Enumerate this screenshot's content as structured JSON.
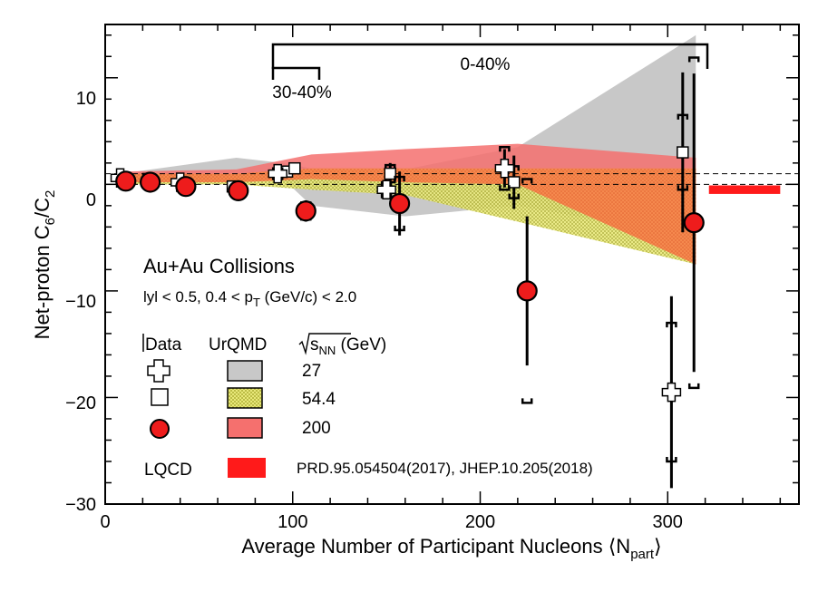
{
  "chart_data": {
    "type": "scatter",
    "xlabel": "Average Number of Participant Nucleons ⟨N",
    "xlabel_sub": "part",
    "xlabel_end": "⟩",
    "ylabel": "Net-proton C",
    "ylabel_sub1": "6",
    "ylabel_mid": "/C",
    "ylabel_sub2": "2",
    "xlim": [
      0,
      370
    ],
    "ylim": [
      -30,
      15
    ],
    "x_ticks": [
      0,
      100,
      200,
      300
    ],
    "x_tick_labels": [
      "0",
      "100",
      "200",
      "300"
    ],
    "y_ticks": [
      -30,
      -20,
      -10,
      0,
      10
    ],
    "y_tick_labels": [
      "−30",
      "−20",
      "−10",
      "0",
      "10"
    ],
    "colors": {
      "band_27": "#c8c8c8",
      "band_54": "#d7d76a",
      "band_200": "#f5706e",
      "band_200_dots": "#f08a40",
      "data_200": "#ee1c1c",
      "lqcd": "#ff1a1a"
    },
    "annotations": {
      "system": "Au+Au Collisions",
      "cuts_pre": "lyl < 0.5, 0.4 < p",
      "cuts_sub": "T",
      "cuts_post": " (GeV/c) < 2.0",
      "range_0_40": "0-40%",
      "range_30_40": "30-40%"
    },
    "legend": {
      "data_header": "Data",
      "urqmd_header": "UrQMD",
      "energy_header_pre": "s",
      "energy_header_sub": "NN",
      "energy_header_post": " (GeV)",
      "energies": [
        "27",
        "54.4",
        "200"
      ],
      "lqcd_label": "LQCD",
      "lqcd_ref": "PRD.95.054504(2017), JHEP.10.205(2018)"
    },
    "lqcd": {
      "x": [
        322,
        360
      ],
      "y": [
        -0.9,
        -0.1
      ]
    },
    "bands": {
      "urqmd_27": {
        "x": [
          8,
          70,
          95,
          110,
          160,
          220,
          315
        ],
        "upper": [
          1.0,
          2.5,
          2.0,
          1.5,
          1.4,
          3.5,
          14.0
        ],
        "lower": [
          0.0,
          0.5,
          0.5,
          -2.0,
          -3.0,
          -2.0,
          -5.0
        ]
      },
      "urqmd_54": {
        "x": [
          8,
          70,
          110,
          160,
          220,
          315
        ],
        "upper": [
          1.0,
          1.0,
          1.5,
          1.5,
          1.5,
          1.5
        ],
        "lower": [
          0.0,
          0.0,
          -0.5,
          -1.0,
          -3.5,
          -7.5
        ]
      },
      "urqmd_200": {
        "x": [
          8,
          70,
          110,
          160,
          220,
          315
        ],
        "upper": [
          1.2,
          1.4,
          2.8,
          3.3,
          3.8,
          2.5
        ],
        "lower": [
          0.2,
          0.2,
          0.5,
          0.2,
          0.0,
          -7.5
        ]
      }
    },
    "series": [
      {
        "energy": "27",
        "marker": "cross",
        "points": [
          {
            "x": 8,
            "y": 0.6,
            "stat": 0.3,
            "sys": 0.2
          },
          {
            "x": 40,
            "y": 0.2,
            "stat": 0.6,
            "sys": 0.3
          },
          {
            "x": 92,
            "y": 1.0,
            "stat": 0.5,
            "sys": 0.5
          },
          {
            "x": 150,
            "y": -0.5,
            "stat": 0.9,
            "sys": 0.7
          },
          {
            "x": 213,
            "y": 1.5,
            "stat": 1.8,
            "sys": 2.0
          },
          {
            "x": 302,
            "y": -19.5,
            "stat": 9.0,
            "sys": 6.5
          }
        ]
      },
      {
        "energy": "54.4",
        "marker": "square",
        "points": [
          {
            "x": 10,
            "y": 0.6,
            "stat": 0.3,
            "sys": 0.2
          },
          {
            "x": 23,
            "y": 0.5,
            "stat": 0.3,
            "sys": 0.3
          },
          {
            "x": 42,
            "y": 0.0,
            "stat": 0.3,
            "sys": 0.4
          },
          {
            "x": 68,
            "y": -0.2,
            "stat": 0.4,
            "sys": 0.4
          },
          {
            "x": 97,
            "y": 1.2,
            "stat": 0.5,
            "sys": 0.4
          },
          {
            "x": 101,
            "y": 1.5,
            "stat": 0.4,
            "sys": 0.4
          },
          {
            "x": 152,
            "y": 1.0,
            "stat": 1.0,
            "sys": 0.8
          },
          {
            "x": 218,
            "y": 0.2,
            "stat": 2.5,
            "sys": 1.5
          },
          {
            "x": 308,
            "y": 3.0,
            "stat": 7.5,
            "sys": 3.5
          }
        ]
      },
      {
        "energy": "200",
        "marker": "circle",
        "points": [
          {
            "x": 11,
            "y": 0.3,
            "stat": 0.4,
            "sys": 0.3
          },
          {
            "x": 24,
            "y": 0.2,
            "stat": 0.4,
            "sys": 0.3
          },
          {
            "x": 43,
            "y": -0.2,
            "stat": 0.5,
            "sys": 0.4
          },
          {
            "x": 71,
            "y": -0.6,
            "stat": 0.6,
            "sys": 0.5
          },
          {
            "x": 107,
            "y": -2.5,
            "stat": 1.0,
            "sys": 0.8
          },
          {
            "x": 157,
            "y": -1.8,
            "stat": 3.0,
            "sys": 2.5
          },
          {
            "x": 225,
            "y": -10.0,
            "stat": 7.0,
            "sys": 10.5
          },
          {
            "x": 314,
            "y": -3.6,
            "stat": 14.0,
            "sys": 15.5
          }
        ]
      }
    ]
  }
}
